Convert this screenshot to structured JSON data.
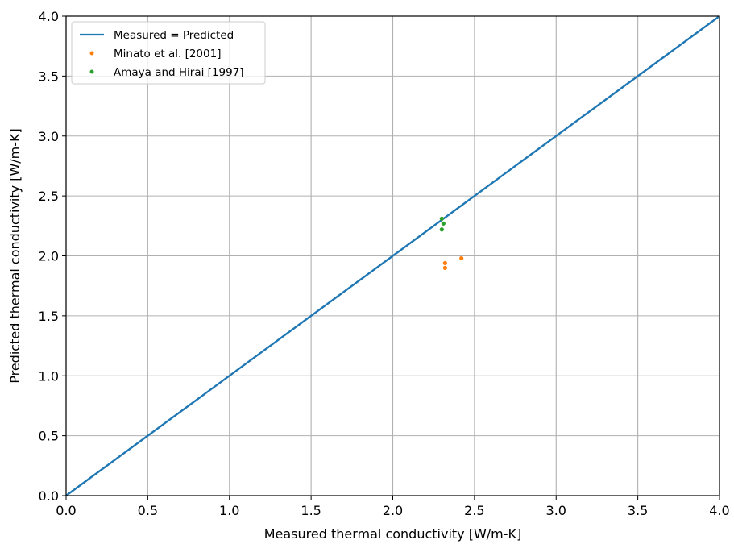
{
  "chart_data": {
    "type": "scatter",
    "xlabel": "Measured thermal conductivity [W/m-K]",
    "ylabel": "Predicted thermal conductivity [W/m-K]",
    "xlim": [
      0.0,
      4.0
    ],
    "ylim": [
      0.0,
      4.0
    ],
    "grid": true,
    "legend_position": "top-left",
    "xticks": [
      "0.0",
      "0.5",
      "1.0",
      "1.5",
      "2.0",
      "2.5",
      "3.0",
      "3.5",
      "4.0"
    ],
    "yticks": [
      "0.0",
      "0.5",
      "1.0",
      "1.5",
      "2.0",
      "2.5",
      "3.0",
      "3.5",
      "4.0"
    ],
    "series": [
      {
        "name": "Measured = Predicted",
        "kind": "line",
        "color": "#1f77b4",
        "x": [
          0.0,
          4.0
        ],
        "y": [
          0.0,
          4.0
        ]
      },
      {
        "name": "Minato et al. [2001]",
        "kind": "scatter",
        "color": "#ff7f0e",
        "x": [
          2.42,
          2.32,
          2.32
        ],
        "y": [
          1.98,
          1.94,
          1.9
        ]
      },
      {
        "name": "Amaya and Hirai [1997]",
        "kind": "scatter",
        "color": "#2ca02c",
        "x": [
          2.3,
          2.31,
          2.3
        ],
        "y": [
          2.31,
          2.27,
          2.22
        ]
      }
    ]
  }
}
